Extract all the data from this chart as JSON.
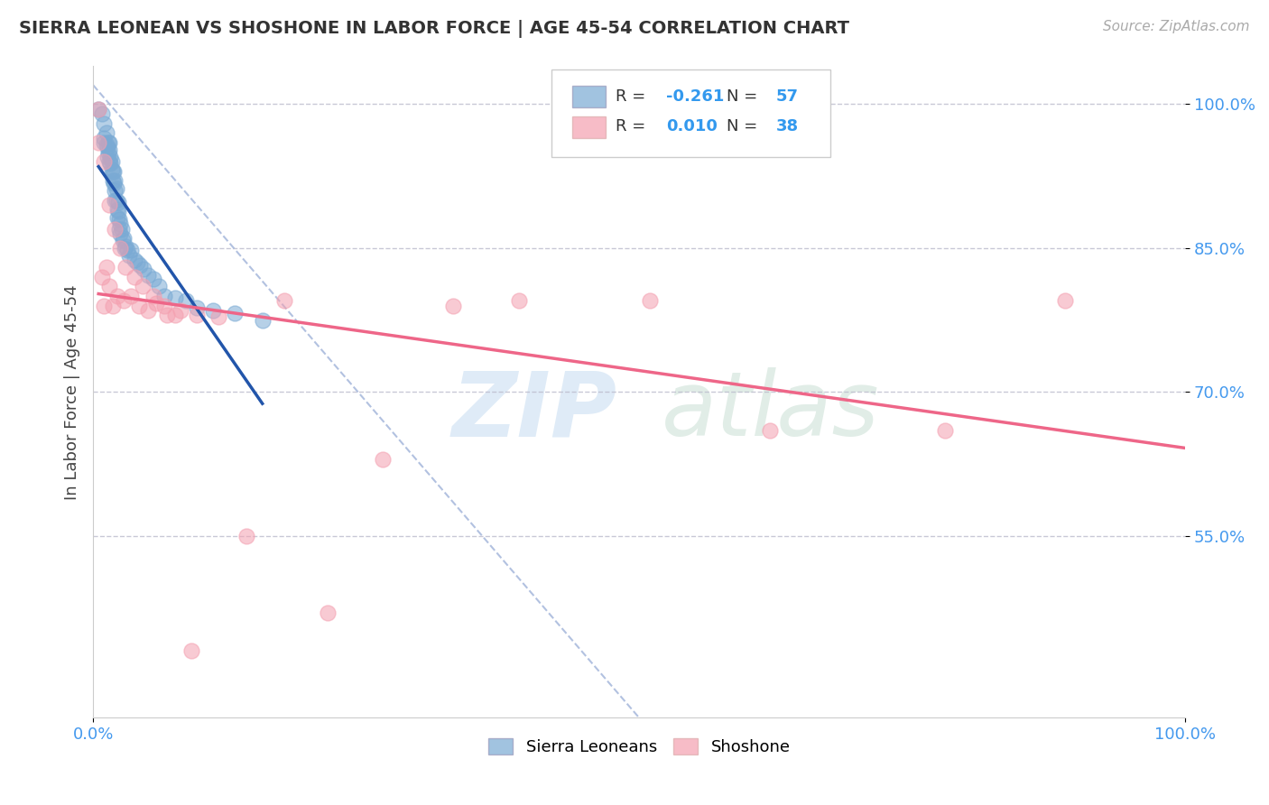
{
  "title": "SIERRA LEONEAN VS SHOSHONE IN LABOR FORCE | AGE 45-54 CORRELATION CHART",
  "source": "Source: ZipAtlas.com",
  "ylabel": "In Labor Force | Age 45-54",
  "xlim": [
    0.0,
    1.0
  ],
  "ylim": [
    0.36,
    1.04
  ],
  "yticks": [
    0.55,
    0.7,
    0.85,
    1.0
  ],
  "ytick_labels": [
    "55.0%",
    "70.0%",
    "85.0%",
    "100.0%"
  ],
  "xtick_labels": [
    "0.0%",
    "100.0%"
  ],
  "xtick_positions": [
    0.0,
    1.0
  ],
  "legend_R1": "-0.261",
  "legend_N1": "57",
  "legend_R2": "0.010",
  "legend_N2": "38",
  "blue_color": "#7AAAD4",
  "pink_color": "#F4A0B0",
  "trend_blue": "#2255AA",
  "trend_pink": "#EE6688",
  "diag_color": "#AABBDD",
  "watermark_zip": "ZIP",
  "watermark_atlas": "atlas",
  "background_color": "#FFFFFF",
  "grid_color": "#BBBBCC",
  "blue_x": [
    0.005,
    0.008,
    0.01,
    0.01,
    0.01,
    0.012,
    0.012,
    0.013,
    0.013,
    0.014,
    0.014,
    0.015,
    0.015,
    0.015,
    0.016,
    0.016,
    0.017,
    0.017,
    0.018,
    0.018,
    0.019,
    0.019,
    0.02,
    0.02,
    0.02,
    0.021,
    0.021,
    0.022,
    0.022,
    0.023,
    0.023,
    0.024,
    0.024,
    0.025,
    0.025,
    0.026,
    0.027,
    0.028,
    0.029,
    0.03,
    0.031,
    0.033,
    0.035,
    0.038,
    0.04,
    0.043,
    0.046,
    0.05,
    0.055,
    0.06,
    0.065,
    0.075,
    0.085,
    0.095,
    0.11,
    0.13,
    0.155
  ],
  "blue_y": [
    0.995,
    0.99,
    0.98,
    0.965,
    0.96,
    0.97,
    0.958,
    0.955,
    0.945,
    0.96,
    0.95,
    0.96,
    0.952,
    0.94,
    0.945,
    0.938,
    0.94,
    0.932,
    0.93,
    0.92,
    0.93,
    0.918,
    0.92,
    0.91,
    0.9,
    0.912,
    0.9,
    0.89,
    0.882,
    0.898,
    0.888,
    0.88,
    0.87,
    0.875,
    0.865,
    0.87,
    0.858,
    0.86,
    0.85,
    0.852,
    0.848,
    0.842,
    0.848,
    0.838,
    0.835,
    0.832,
    0.828,
    0.822,
    0.818,
    0.81,
    0.8,
    0.798,
    0.795,
    0.788,
    0.785,
    0.782,
    0.775
  ],
  "pink_x": [
    0.005,
    0.008,
    0.01,
    0.012,
    0.015,
    0.018,
    0.022,
    0.028,
    0.035,
    0.042,
    0.05,
    0.058,
    0.068,
    0.08,
    0.095,
    0.115,
    0.14,
    0.175,
    0.215,
    0.265,
    0.33,
    0.39,
    0.51,
    0.62,
    0.78,
    0.89,
    0.005,
    0.01,
    0.015,
    0.02,
    0.025,
    0.03,
    0.038,
    0.045,
    0.055,
    0.065,
    0.075,
    0.09
  ],
  "pink_y": [
    0.995,
    0.82,
    0.79,
    0.83,
    0.81,
    0.79,
    0.8,
    0.795,
    0.8,
    0.79,
    0.785,
    0.792,
    0.78,
    0.785,
    0.78,
    0.778,
    0.55,
    0.795,
    0.47,
    0.63,
    0.79,
    0.795,
    0.795,
    0.66,
    0.66,
    0.795,
    0.96,
    0.94,
    0.895,
    0.87,
    0.85,
    0.83,
    0.82,
    0.81,
    0.8,
    0.79,
    0.78,
    0.43
  ]
}
